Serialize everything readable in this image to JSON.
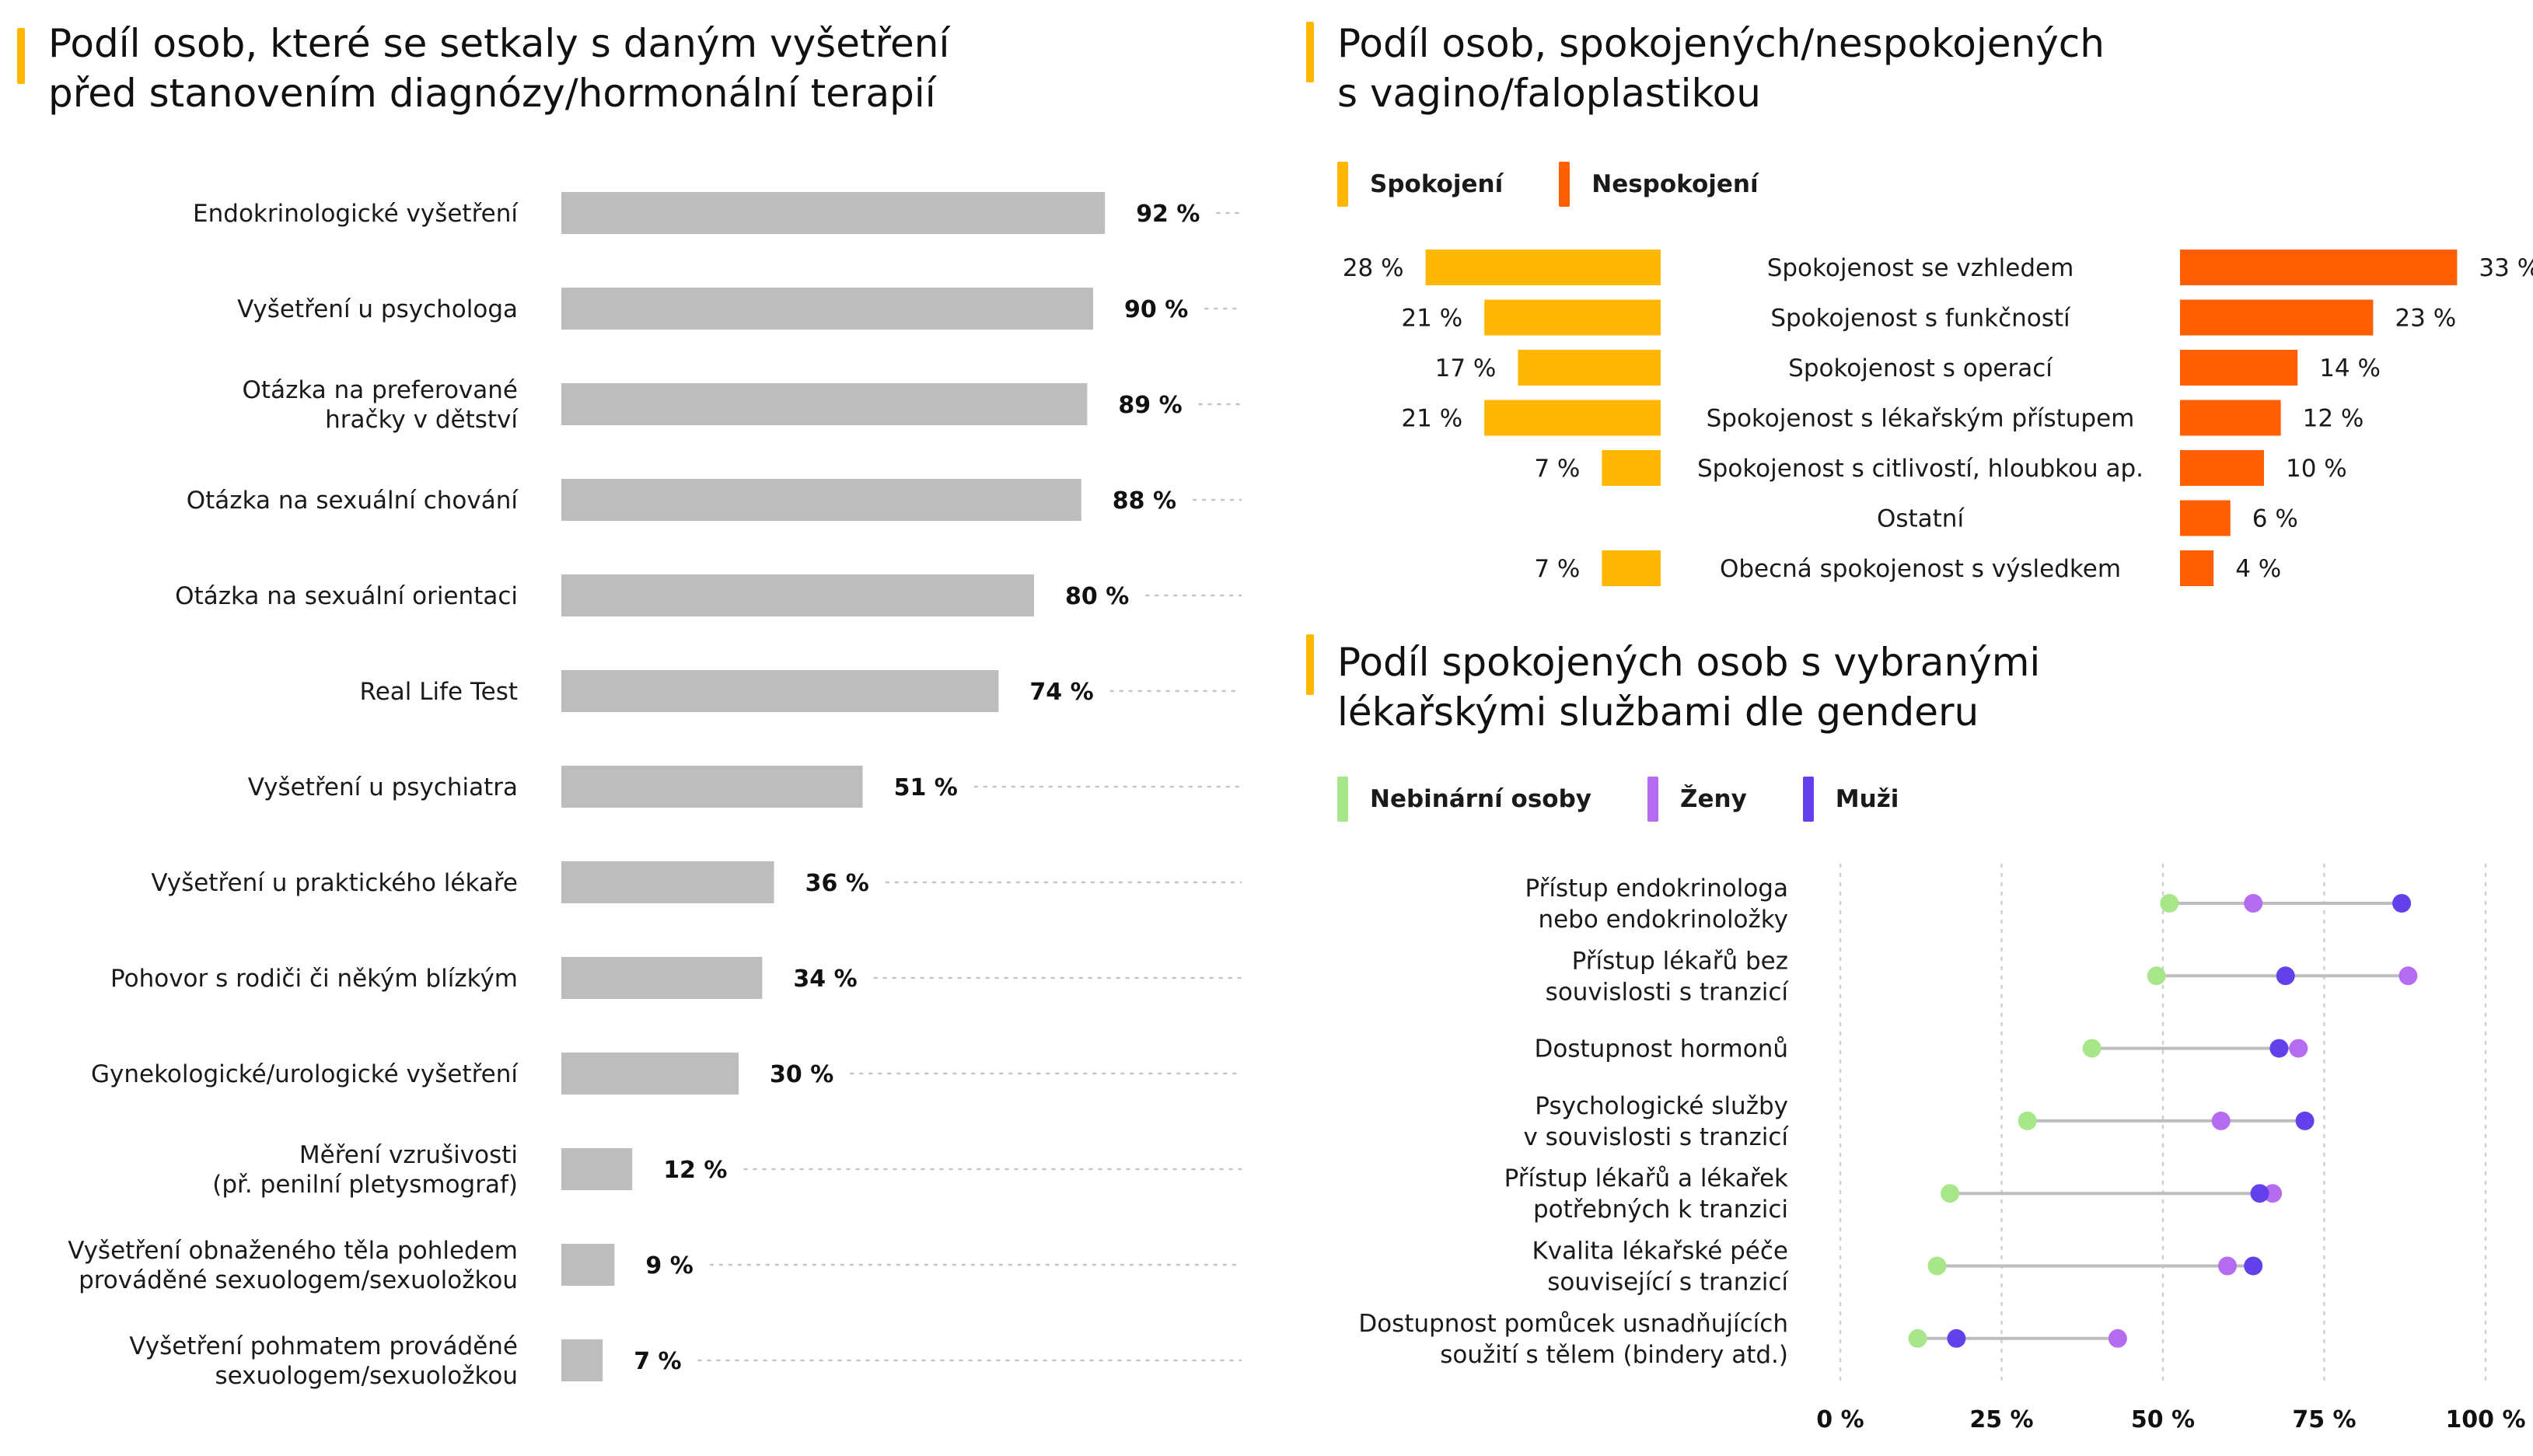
{
  "charts": {
    "exams": {
      "title_line1": "Podíl osob, které se setkaly s daným vyšetření",
      "title_line2": "před stanovením diagnózy/hormonální terapií"
    },
    "surgery": {
      "title_line1": "Podíl osob, spokojených/nespokojených",
      "title_line2": "s vagino/faloplastikou"
    },
    "services": {
      "title_line1": "Podíl spokojených osob s vybranými",
      "title_line2": "lékařskými službami dle genderu"
    }
  },
  "legends": {
    "surgery": [
      {
        "label": "Spokojení",
        "color": "#ffb703"
      },
      {
        "label": "Nespokojení",
        "color": "#ff5f00"
      }
    ],
    "services": [
      {
        "label": "Nebinární osoby",
        "color": "#a8e68a"
      },
      {
        "label": "Ženy",
        "color": "#b56cf0"
      },
      {
        "label": "Muži",
        "color": "#6240ea"
      }
    ]
  },
  "chart_data": [
    {
      "type": "bar",
      "orientation": "horizontal",
      "title": "Podíl osob, které se setkaly s daným vyšetření před stanovením diagnózy/hormonální terapií",
      "bar_color": "#bdbdbd",
      "value_suffix": " %",
      "categories": [
        [
          "Endokrinologické vyšetření"
        ],
        [
          "Vyšetření u psychologa"
        ],
        [
          "Otázka na preferované",
          "hračky v dětství"
        ],
        [
          "Otázka na sexuální chování"
        ],
        [
          "Otázka na sexuální orientaci"
        ],
        [
          "Real Life Test"
        ],
        [
          "Vyšetření u psychiatra"
        ],
        [
          "Vyšetření u praktického lékaře"
        ],
        [
          "Pohovor s rodiči či někým blízkým"
        ],
        [
          "Gynekologické/urologické vyšetření"
        ],
        [
          "Měření vzrušivosti",
          "(př. penilní pletysmograf)"
        ],
        [
          "Vyšetření obnaženého těla pohledem",
          "prováděné sexuologem/sexuoložkou"
        ],
        [
          "Vyšetření pohmatem prováděné",
          "sexuologem/sexuoložkou"
        ]
      ],
      "values": [
        92,
        90,
        89,
        88,
        80,
        74,
        51,
        36,
        34,
        30,
        12,
        9,
        7
      ],
      "value_labels": [
        "92 %",
        "90 %",
        "89 %",
        "88 %",
        "80 %",
        "74 %",
        "51 %",
        "36 %",
        "34 %",
        "30 %",
        "12 %",
        "9 %",
        "7 %"
      ],
      "xlim": [
        0,
        100
      ]
    },
    {
      "type": "bar",
      "orientation": "horizontal-diverging",
      "title": "Podíl osob, spokojených/nespokojených s vagino/faloplastikou",
      "categories": [
        "Spokojenost se vzhledem",
        "Spokojenost s funkčností",
        "Spokojenost s operací",
        "Spokojenost s lékařským přístupem",
        "Spokojenost s citlivostí, hloubkou ap.",
        "Ostatní",
        "Obecná spokojenost s výsledkem"
      ],
      "series": [
        {
          "name": "Spokojení",
          "color": "#ffb703",
          "values": [
            28,
            21,
            17,
            21,
            7,
            null,
            7
          ],
          "value_labels": [
            "28 %",
            "21 %",
            "17 %",
            "21 %",
            "7 %",
            "",
            "7 %"
          ]
        },
        {
          "name": "Nespokojení",
          "color": "#ff5f00",
          "values": [
            33,
            23,
            14,
            12,
            10,
            6,
            4
          ],
          "value_labels": [
            "33 %",
            "23 %",
            "14 %",
            "12 %",
            "10 %",
            "6 %",
            "4 %"
          ]
        }
      ]
    },
    {
      "type": "scatter",
      "subtype": "dot-plot",
      "title": "Podíl spokojených osob s vybranými lékařskými službami dle genderu",
      "categories": [
        [
          "Přístup endokrinologa",
          "nebo endokrinoložky"
        ],
        [
          "Přístup lékařů bez",
          "souvislosti s tranzicí"
        ],
        [
          "Dostupnost hormonů"
        ],
        [
          "Psychologické služby",
          "v souvislosti s tranzicí"
        ],
        [
          "Přístup lékařů a lékařek",
          "potřebných k tranzici"
        ],
        [
          "Kvalita lékařské péče",
          "související s tranzicí"
        ],
        [
          "Dostupnost pomůcek usnadňujících",
          "soužití s tělem (bindery atd.)"
        ]
      ],
      "series": [
        {
          "name": "Nebinární osoby",
          "color": "#a8e68a",
          "values": [
            51,
            49,
            39,
            29,
            17,
            15,
            12
          ]
        },
        {
          "name": "Ženy",
          "color": "#b56cf0",
          "values": [
            64,
            88,
            71,
            59,
            67,
            60,
            43
          ]
        },
        {
          "name": "Muži",
          "color": "#6240ea",
          "values": [
            87,
            69,
            68,
            72,
            65,
            64,
            18
          ]
        }
      ],
      "xlim": [
        0,
        100
      ],
      "xticks": [
        "0 %",
        "25 %",
        "50 %",
        "75 %",
        "100 %"
      ],
      "grid": true
    }
  ]
}
